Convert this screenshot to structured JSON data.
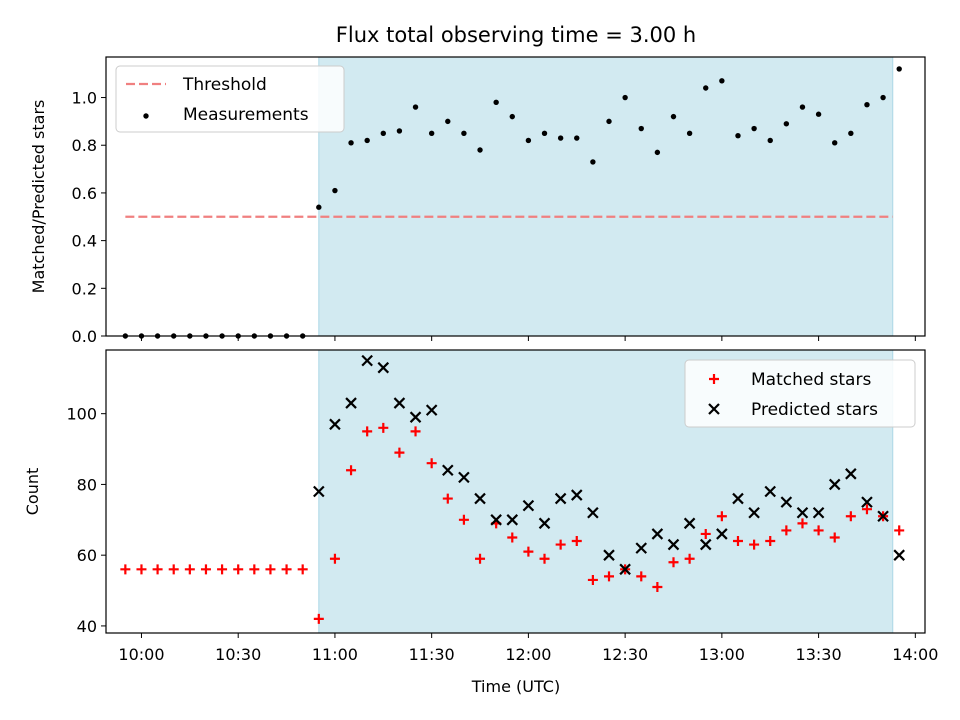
{
  "figure": {
    "title": "Flux total observing time = 3.00 h",
    "xlabel": "Time (UTC)"
  },
  "colors": {
    "highlight": "#add8e6",
    "threshold": "#f08080",
    "measurements": "#000000",
    "matched": "#ff0000",
    "predicted": "#000000"
  },
  "chart_data": [
    {
      "type": "scatter",
      "ylabel": "Matched/Predicted stars",
      "ylim": [
        0,
        1.17
      ],
      "yticks": [
        0.0,
        0.2,
        0.4,
        0.6,
        0.8,
        1.0
      ],
      "ytick_labels": [
        "0.0",
        "0.2",
        "0.4",
        "0.6",
        "0.8",
        "1.0"
      ],
      "xlim": [
        "09:49",
        "14:03"
      ],
      "legend": {
        "location": "upper left",
        "entries": [
          "Threshold",
          "Measurements"
        ]
      },
      "highlight_span": [
        "10:55",
        "13:53"
      ],
      "threshold": {
        "name": "Threshold",
        "x": [
          "09:55",
          "13:53"
        ],
        "y": 0.5,
        "style": "dashed"
      },
      "series": [
        {
          "name": "Measurements",
          "marker": "dot",
          "x": [
            "09:55",
            "10:00",
            "10:05",
            "10:10",
            "10:15",
            "10:20",
            "10:25",
            "10:30",
            "10:35",
            "10:40",
            "10:45",
            "10:50",
            "10:55",
            "11:00",
            "11:05",
            "11:10",
            "11:15",
            "11:20",
            "11:25",
            "11:30",
            "11:35",
            "11:40",
            "11:45",
            "11:50",
            "11:55",
            "12:00",
            "12:05",
            "12:10",
            "12:15",
            "12:20",
            "12:25",
            "12:30",
            "12:35",
            "12:40",
            "12:45",
            "12:50",
            "12:55",
            "13:00",
            "13:05",
            "13:10",
            "13:15",
            "13:20",
            "13:25",
            "13:30",
            "13:35",
            "13:40",
            "13:45",
            "13:50",
            "13:55"
          ],
          "y": [
            0,
            0,
            0,
            0,
            0,
            0,
            0,
            0,
            0,
            0,
            0,
            0,
            0.54,
            0.61,
            0.81,
            0.82,
            0.85,
            0.86,
            0.96,
            0.85,
            0.9,
            0.85,
            0.78,
            0.98,
            0.92,
            0.82,
            0.85,
            0.83,
            0.83,
            0.73,
            0.9,
            1.0,
            0.87,
            0.77,
            0.92,
            0.85,
            1.04,
            1.07,
            0.84,
            0.87,
            0.82,
            0.89,
            0.96,
            0.93,
            0.81,
            0.85,
            0.97,
            1.0,
            1.12
          ]
        }
      ]
    },
    {
      "type": "scatter",
      "ylabel": "Count",
      "ylim": [
        38,
        118
      ],
      "yticks": [
        40,
        60,
        80,
        100
      ],
      "ytick_labels": [
        "40",
        "60",
        "80",
        "100"
      ],
      "xlim": [
        "09:49",
        "14:03"
      ],
      "xticks": [
        "10:00",
        "10:30",
        "11:00",
        "11:30",
        "12:00",
        "12:30",
        "13:00",
        "13:30",
        "14:00"
      ],
      "legend": {
        "location": "upper right",
        "entries": [
          "Matched stars",
          "Predicted stars"
        ]
      },
      "highlight_span": [
        "10:55",
        "13:53"
      ],
      "series": [
        {
          "name": "Matched stars",
          "marker": "plus",
          "x": [
            "09:55",
            "10:00",
            "10:05",
            "10:10",
            "10:15",
            "10:20",
            "10:25",
            "10:30",
            "10:35",
            "10:40",
            "10:45",
            "10:50",
            "10:55",
            "11:00",
            "11:05",
            "11:10",
            "11:15",
            "11:20",
            "11:25",
            "11:30",
            "11:35",
            "11:40",
            "11:45",
            "11:50",
            "11:55",
            "12:00",
            "12:05",
            "12:10",
            "12:15",
            "12:20",
            "12:25",
            "12:30",
            "12:35",
            "12:40",
            "12:45",
            "12:50",
            "12:55",
            "13:00",
            "13:05",
            "13:10",
            "13:15",
            "13:20",
            "13:25",
            "13:30",
            "13:35",
            "13:40",
            "13:45",
            "13:50",
            "13:55"
          ],
          "y": [
            56,
            56,
            56,
            56,
            56,
            56,
            56,
            56,
            56,
            56,
            56,
            56,
            42,
            59,
            84,
            95,
            96,
            89,
            95,
            86,
            76,
            70,
            59,
            69,
            65,
            61,
            59,
            63,
            64,
            53,
            54,
            56,
            54,
            51,
            58,
            59,
            66,
            71,
            64,
            63,
            64,
            67,
            69,
            67,
            65,
            71,
            73,
            71,
            67
          ]
        },
        {
          "name": "Predicted stars",
          "marker": "x",
          "x": [
            "10:55",
            "11:00",
            "11:05",
            "11:10",
            "11:15",
            "11:20",
            "11:25",
            "11:30",
            "11:35",
            "11:40",
            "11:45",
            "11:50",
            "11:55",
            "12:00",
            "12:05",
            "12:10",
            "12:15",
            "12:20",
            "12:25",
            "12:30",
            "12:35",
            "12:40",
            "12:45",
            "12:50",
            "12:55",
            "13:00",
            "13:05",
            "13:10",
            "13:15",
            "13:20",
            "13:25",
            "13:30",
            "13:35",
            "13:40",
            "13:45",
            "13:50",
            "13:55"
          ],
          "y": [
            78,
            97,
            103,
            115,
            113,
            103,
            99,
            101,
            84,
            82,
            76,
            70,
            70,
            74,
            69,
            76,
            77,
            72,
            60,
            56,
            62,
            66,
            63,
            69,
            63,
            66,
            76,
            72,
            78,
            75,
            72,
            72,
            80,
            83,
            75,
            71,
            60
          ]
        }
      ]
    }
  ]
}
